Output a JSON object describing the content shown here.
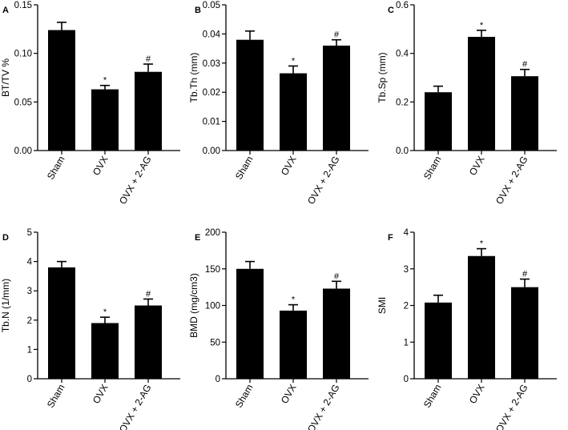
{
  "chart_data": [
    {
      "type": "bar",
      "panel": "A",
      "categories": [
        "Sham",
        "OVX",
        "OVX + 2-AG"
      ],
      "ylabel": "BT/TV %",
      "ylim": [
        0,
        0.15
      ],
      "yticks": [
        "0.00",
        "0.05",
        "0.10",
        "0.15"
      ],
      "values": [
        0.124,
        0.063,
        0.081
      ],
      "errors": [
        0.008,
        0.004,
        0.008
      ],
      "annotations": [
        "",
        "*",
        "#"
      ]
    },
    {
      "type": "bar",
      "panel": "B",
      "categories": [
        "Sham",
        "OVX",
        "OVX + 2-AG"
      ],
      "ylabel": "Tb.Th (mm)",
      "ylim": [
        0,
        0.05
      ],
      "yticks": [
        "0.00",
        "0.01",
        "0.02",
        "0.03",
        "0.04",
        "0.05"
      ],
      "values": [
        0.038,
        0.0265,
        0.036
      ],
      "errors": [
        0.003,
        0.0025,
        0.002
      ],
      "annotations": [
        "",
        "*",
        "#"
      ]
    },
    {
      "type": "bar",
      "panel": "C",
      "categories": [
        "Sham",
        "OVX",
        "OVX + 2-AG"
      ],
      "ylabel": "Tb.Sp (mm)",
      "ylim": [
        0,
        0.6
      ],
      "yticks": [
        "0.0",
        "0.2",
        "0.4",
        "0.6"
      ],
      "values": [
        0.24,
        0.468,
        0.306
      ],
      "errors": [
        0.025,
        0.027,
        0.028
      ],
      "annotations": [
        "",
        "*",
        "#"
      ]
    },
    {
      "type": "bar",
      "panel": "D",
      "categories": [
        "Sham",
        "OVX",
        "OVX + 2-AG"
      ],
      "ylabel": "Tb.N (1/mm)",
      "ylim": [
        0,
        5
      ],
      "yticks": [
        "0",
        "1",
        "2",
        "3",
        "4",
        "5"
      ],
      "values": [
        3.8,
        1.9,
        2.5
      ],
      "errors": [
        0.2,
        0.2,
        0.22
      ],
      "annotations": [
        "",
        "*",
        "#"
      ]
    },
    {
      "type": "bar",
      "panel": "E",
      "categories": [
        "Sham",
        "OVX",
        "OVX + 2-AG"
      ],
      "ylabel": "BMD (mg/cm3)",
      "ylim": [
        0,
        200
      ],
      "yticks": [
        "0",
        "50",
        "100",
        "150",
        "200"
      ],
      "values": [
        150,
        93,
        123
      ],
      "errors": [
        10,
        8,
        10
      ],
      "annotations": [
        "",
        "*",
        "#"
      ]
    },
    {
      "type": "bar",
      "panel": "F",
      "categories": [
        "Sham",
        "OVX",
        "OVX + 2-AG"
      ],
      "ylabel": "SMI",
      "ylim": [
        0,
        4
      ],
      "yticks": [
        "0",
        "1",
        "2",
        "3",
        "4"
      ],
      "values": [
        2.08,
        3.35,
        2.5
      ],
      "errors": [
        0.2,
        0.2,
        0.22
      ],
      "annotations": [
        "",
        "*",
        "#"
      ]
    }
  ],
  "colors": {
    "bar": "#000000",
    "axis": "#000000",
    "background": "#ffffff"
  }
}
